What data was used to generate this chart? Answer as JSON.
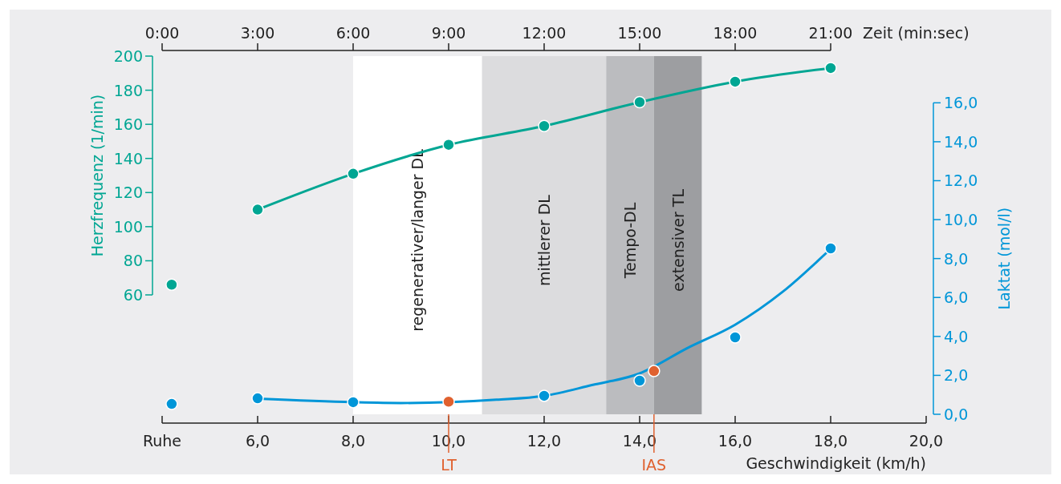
{
  "chart_data": {
    "type": "line",
    "xlabel": "Geschwindigkeit (km/h)",
    "ylabel": "Herzfrequenz (1/min)",
    "y2label": "Laktat (mol/l)",
    "x2label": "Zeit (min:sec)",
    "xlim": [
      4,
      20
    ],
    "xticks": [
      {
        "value": 4,
        "label": "Ruhe"
      },
      {
        "value": 6,
        "label": "6,0"
      },
      {
        "value": 8,
        "label": "8,0"
      },
      {
        "value": 10,
        "label": "10,0"
      },
      {
        "value": 12,
        "label": "12,0"
      },
      {
        "value": 14,
        "label": "14,0"
      },
      {
        "value": 16,
        "label": "16,0"
      },
      {
        "value": 18,
        "label": "18,0"
      },
      {
        "value": 20,
        "label": "20,0"
      }
    ],
    "x2lim": [
      0,
      21
    ],
    "x2ticks": [
      {
        "value": 0,
        "label": "0:00"
      },
      {
        "value": 3,
        "label": "3:00"
      },
      {
        "value": 6,
        "label": "6:00"
      },
      {
        "value": 9,
        "label": "9:00"
      },
      {
        "value": 12,
        "label": "12:00"
      },
      {
        "value": 15,
        "label": "15:00"
      },
      {
        "value": 18,
        "label": "18:00"
      },
      {
        "value": 21,
        "label": "21:00"
      }
    ],
    "ylim": [
      -10,
      200
    ],
    "yticks": [
      60,
      80,
      100,
      120,
      140,
      160,
      180,
      200
    ],
    "y2lim": [
      0,
      18.4
    ],
    "y2ticks": [
      {
        "value": 0,
        "label": "0,0"
      },
      {
        "value": 2,
        "label": "2,0"
      },
      {
        "value": 4,
        "label": "4,0"
      },
      {
        "value": 6,
        "label": "6,0"
      },
      {
        "value": 8,
        "label": "8,0"
      },
      {
        "value": 10,
        "label": "10,0"
      },
      {
        "value": 12,
        "label": "12,0"
      },
      {
        "value": 14,
        "label": "14,0"
      },
      {
        "value": 16,
        "label": "16,0"
      }
    ],
    "grid": false,
    "bands": [
      {
        "axis": "x",
        "from": 8,
        "to": 10.7,
        "label": "regenerativer/langer DL",
        "color": "#ffffff"
      },
      {
        "axis": "x",
        "from": 10.7,
        "to": 13.3,
        "label": "mittlerer DL",
        "color": "#dcdcde"
      },
      {
        "axis": "x",
        "from": 13.3,
        "to": 14.3,
        "label": "Tempo-DL",
        "color": "#bbbcbf"
      },
      {
        "axis": "x",
        "from": 14.3,
        "to": 15.3,
        "label": "extensiver TL",
        "color": "#9d9ea1"
      }
    ],
    "ref_lines": [
      {
        "axis": "x",
        "value": 10,
        "label": "LT",
        "color": "#e0612f"
      },
      {
        "axis": "x",
        "value": 14.3,
        "label": "IAS",
        "color": "#e0612f"
      }
    ],
    "series": [
      {
        "color": "#00a693",
        "marker": "circle",
        "x": [
          6,
          8,
          10,
          12,
          14,
          16,
          18
        ],
        "values": [
          110,
          131,
          148,
          159,
          173,
          185,
          193
        ]
      },
      {
        "type": "scatter",
        "color": "#00a693",
        "marker": "circle",
        "x": [
          4.2
        ],
        "values": [
          66
        ]
      },
      {
        "color": "#0096d8",
        "marker": "none",
        "axis": "y2",
        "x": [
          6,
          8,
          9,
          11,
          12,
          13,
          14,
          15,
          16,
          17,
          18
        ],
        "values": [
          0.8,
          0.62,
          0.58,
          0.75,
          0.95,
          1.5,
          2.1,
          3.4,
          4.6,
          6.3,
          8.5
        ]
      },
      {
        "type": "scatter",
        "color": "#0096d8",
        "marker": "circle",
        "axis": "y2",
        "x": [
          4.2,
          6,
          8,
          12,
          14,
          16,
          18
        ],
        "values": [
          0.53,
          0.82,
          0.62,
          0.95,
          1.73,
          3.95,
          8.52
        ]
      },
      {
        "type": "scatter",
        "color": "#e0612f",
        "marker": "circle",
        "axis": "y2",
        "x": [
          10,
          14.3
        ],
        "values": [
          0.65,
          2.22
        ]
      }
    ]
  }
}
